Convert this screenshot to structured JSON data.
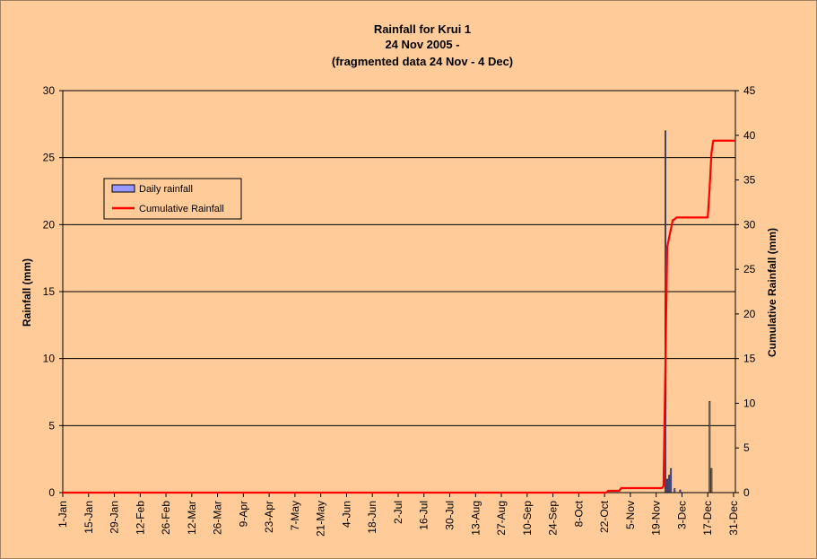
{
  "chart_data": {
    "type": "bar+line",
    "title_lines": [
      "Rainfall for Krui 1",
      "24 Nov  2005 -",
      "(fragmented data 24 Nov - 4 Dec)"
    ],
    "ylabel": "Rainfall (mm)",
    "y2label": "Cumulative Rainfall (mm)",
    "xlabel": "",
    "ylim": [
      0,
      30
    ],
    "y2lim": [
      0,
      45
    ],
    "yticks": [
      0,
      5,
      10,
      15,
      20,
      25,
      30
    ],
    "y2ticks": [
      0,
      5,
      10,
      15,
      20,
      25,
      30,
      35,
      40,
      45
    ],
    "grid": true,
    "legend_position": "upper-left",
    "xlim": [
      1,
      366
    ],
    "x_ticks": [
      {
        "day": 1,
        "label": "1-Jan"
      },
      {
        "day": 15,
        "label": "15-Jan"
      },
      {
        "day": 29,
        "label": "29-Jan"
      },
      {
        "day": 43,
        "label": "12-Feb"
      },
      {
        "day": 57,
        "label": "26-Feb"
      },
      {
        "day": 71,
        "label": "12-Mar"
      },
      {
        "day": 85,
        "label": "26-Mar"
      },
      {
        "day": 99,
        "label": "9-Apr"
      },
      {
        "day": 113,
        "label": "23-Apr"
      },
      {
        "day": 127,
        "label": "7-May"
      },
      {
        "day": 141,
        "label": "21-May"
      },
      {
        "day": 155,
        "label": "4-Jun"
      },
      {
        "day": 169,
        "label": "18-Jun"
      },
      {
        "day": 183,
        "label": "2-Jul"
      },
      {
        "day": 197,
        "label": "16-Jul"
      },
      {
        "day": 211,
        "label": "30-Jul"
      },
      {
        "day": 225,
        "label": "13-Aug"
      },
      {
        "day": 239,
        "label": "27-Aug"
      },
      {
        "day": 253,
        "label": "10-Sep"
      },
      {
        "day": 267,
        "label": "24-Sep"
      },
      {
        "day": 281,
        "label": "8-Oct"
      },
      {
        "day": 295,
        "label": "22-Oct"
      },
      {
        "day": 309,
        "label": "5-Nov"
      },
      {
        "day": 323,
        "label": "19-Nov"
      },
      {
        "day": 337,
        "label": "3-Dec"
      },
      {
        "day": 351,
        "label": "17-Dec"
      },
      {
        "day": 365,
        "label": "31-Dec"
      }
    ],
    "series": [
      {
        "name": "Daily rainfall",
        "type": "bar",
        "axis": "left",
        "color": "#9999ff",
        "points": [
          {
            "day": 328,
            "value": 27.0
          },
          {
            "day": 329,
            "value": 1.0
          },
          {
            "day": 330,
            "value": 1.3
          },
          {
            "day": 331,
            "value": 1.8
          },
          {
            "day": 333,
            "value": 0.3
          },
          {
            "day": 336,
            "value": 0.2
          },
          {
            "day": 352,
            "value": 6.8
          },
          {
            "day": 353,
            "value": 1.8
          }
        ]
      },
      {
        "name": "Cumulative Rainfall",
        "type": "line",
        "axis": "right",
        "color": "#ff0000",
        "points": [
          {
            "day": 1,
            "value": 0
          },
          {
            "day": 296,
            "value": 0
          },
          {
            "day": 297,
            "value": 0.2
          },
          {
            "day": 303,
            "value": 0.2
          },
          {
            "day": 304,
            "value": 0.5
          },
          {
            "day": 326,
            "value": 0.5
          },
          {
            "day": 327,
            "value": 0.7
          },
          {
            "day": 328,
            "value": 14.0
          },
          {
            "day": 329,
            "value": 27.5
          },
          {
            "day": 330,
            "value": 28.5
          },
          {
            "day": 331,
            "value": 29.5
          },
          {
            "day": 332,
            "value": 30.5
          },
          {
            "day": 333,
            "value": 30.6
          },
          {
            "day": 334,
            "value": 30.8
          },
          {
            "day": 351,
            "value": 30.8
          },
          {
            "day": 352,
            "value": 34.0
          },
          {
            "day": 353,
            "value": 38.0
          },
          {
            "day": 354,
            "value": 39.4
          },
          {
            "day": 366,
            "value": 39.4
          }
        ]
      }
    ]
  }
}
